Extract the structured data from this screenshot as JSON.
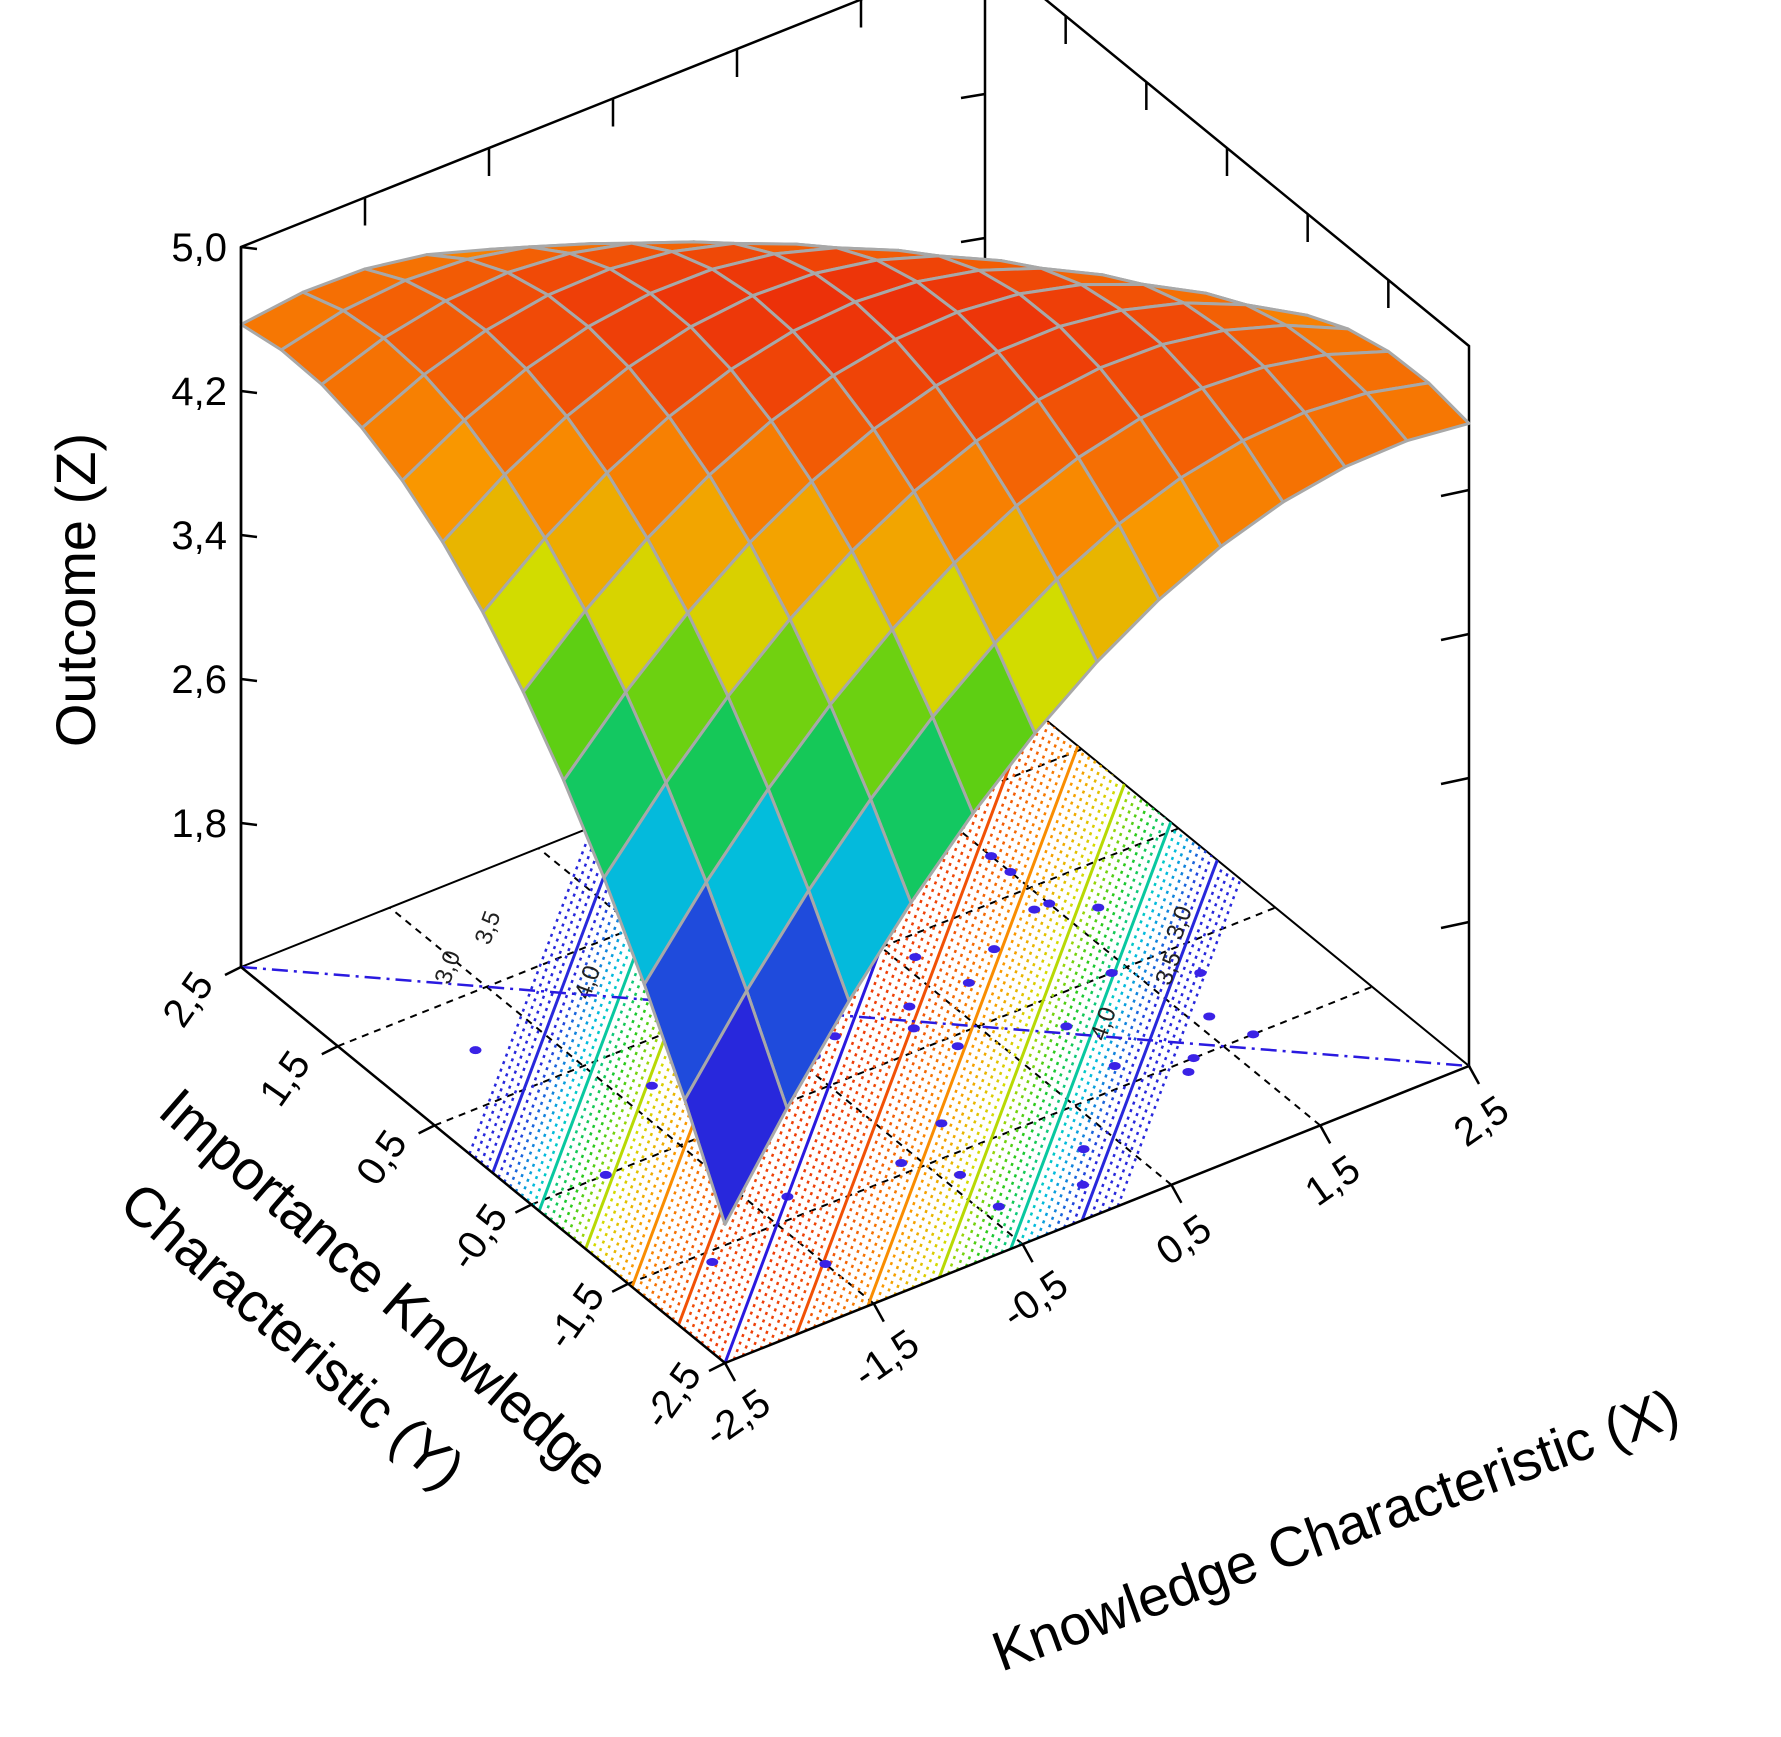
{
  "chart_data": {
    "type": "surface3d",
    "title": "",
    "zlabel": "Outcome (Z)",
    "xlabel": "Knowledge Characteristic (X)",
    "ylabel_line1": "Importance Knowledge",
    "ylabel_line2": "Characteristic (Y)",
    "x_ticks": [
      "-2,5",
      "-1,5",
      "-0,5",
      "0,5",
      "1,5",
      "2,5"
    ],
    "y_ticks": [
      "-2,5",
      "-1,5",
      "-0,5",
      "0,5",
      "1,5",
      "2,5"
    ],
    "z_ticks": [
      "1,8",
      "2,6",
      "3,4",
      "4,2",
      "5,0"
    ],
    "x_range": [
      -2.5,
      2.5
    ],
    "y_range": [
      -2.5,
      2.5
    ],
    "z_range": [
      1.0,
      5.0
    ],
    "surface": {
      "grid_n": 13,
      "peak_z": 4.97,
      "edge_drop_along_x_minus_y": 0.1,
      "edge_drop_along_x_plus_y": 0.8,
      "mesh_color": "#a8a8a8"
    },
    "contour_levels": [
      {
        "label": "3,0",
        "value": 3.0
      },
      {
        "label": "3,5",
        "value": 3.5
      },
      {
        "label": "4,0",
        "value": 4.0
      }
    ],
    "scatter_points": [
      [
        1.3,
        -1.5
      ],
      [
        1.6,
        -1.2
      ],
      [
        1.2,
        -1.6
      ],
      [
        1.7,
        -1.5
      ],
      [
        0.9,
        -1.3
      ],
      [
        1.8,
        -0.8
      ],
      [
        0.3,
        -1.9
      ],
      [
        1.4,
        -0.5
      ],
      [
        1.4,
        0.3
      ],
      [
        0.6,
        0.3
      ],
      [
        0.4,
        0.5
      ],
      [
        0.3,
        0.9
      ],
      [
        0.2,
        0.7
      ],
      [
        0.3,
        1.3
      ],
      [
        0.9,
        -0.8
      ],
      [
        0.3,
        -0.6
      ],
      [
        0.2,
        -0.3
      ],
      [
        -0.2,
        -0.1
      ],
      [
        -0.4,
        0.1
      ],
      [
        -0.8,
        -0.5
      ],
      [
        -0.4,
        -0.2
      ],
      [
        -0.6,
        -0.1
      ],
      [
        0.3,
        -0.1
      ],
      [
        0.7,
        -0.1
      ],
      [
        1.0,
        0.1
      ],
      [
        1.5,
        0.3
      ],
      [
        1.5,
        0.7
      ],
      [
        1.7,
        0.1
      ],
      [
        0.7,
        0.9
      ],
      [
        0.9,
        1.2
      ],
      [
        1.3,
        1.4
      ],
      [
        1.1,
        1.0
      ],
      [
        1.5,
        0.9
      ],
      [
        -0.2,
        0.8
      ],
      [
        -0.3,
        1.2
      ],
      [
        -1.1,
        -0.2
      ],
      [
        -0.2,
        -1.2
      ],
      [
        -0.6,
        -1.4
      ],
      [
        -0.4,
        -1.7
      ],
      [
        -1.1,
        -0.3
      ],
      [
        -1.3,
        0.1
      ],
      [
        -1.9,
        1.0
      ],
      [
        -2.0,
        -0.5
      ],
      [
        -1.3,
        -1.3
      ],
      [
        -2.0,
        -1.6
      ],
      [
        -1.5,
        -2.0
      ],
      [
        -0.4,
        -2.1
      ],
      [
        0.1,
        -2.2
      ]
    ],
    "colors": {
      "axis": "#000000",
      "regression_line": "#2a1ae0",
      "scatter": "#3a22e6",
      "floor_grid": "#000000"
    }
  }
}
